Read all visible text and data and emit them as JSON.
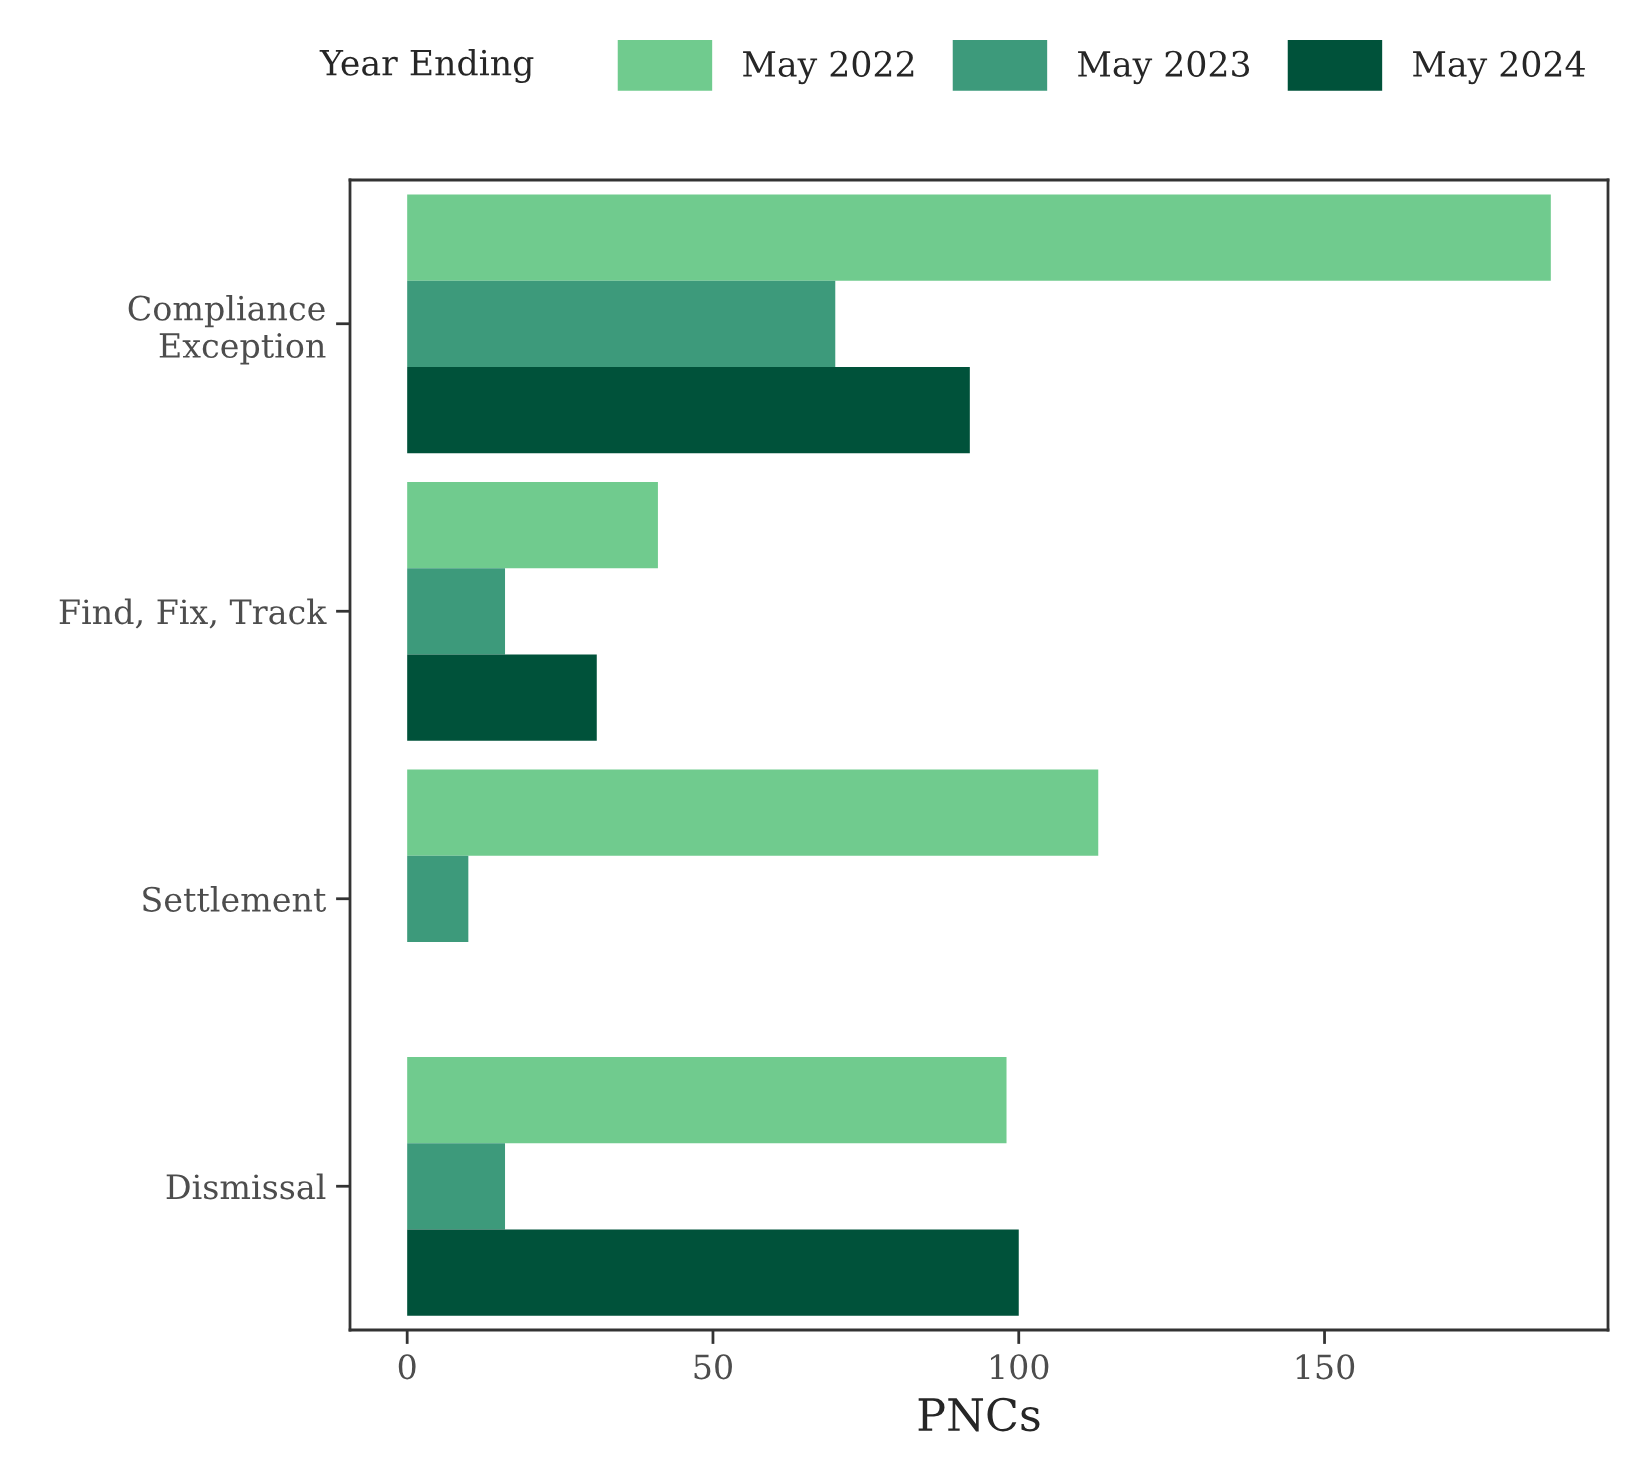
{
  "chart_data": {
    "type": "bar",
    "orientation": "horizontal",
    "xlabel": "PNCs",
    "legend_title": "Year Ending",
    "legend": "top",
    "categories": [
      "Compliance\nException",
      "Find, Fix, Track",
      "Settlement",
      "Dismissal"
    ],
    "series": [
      {
        "name": "May 2022",
        "color": "#70cb8e",
        "values": [
          187,
          41,
          113,
          98
        ]
      },
      {
        "name": "May 2023",
        "color": "#3d9a7b",
        "values": [
          70,
          16,
          10,
          16
        ]
      },
      {
        "name": "May 2024",
        "color": "#00523a",
        "values": [
          92,
          31,
          null,
          100
        ]
      }
    ],
    "xlim": [
      -9.35,
      196.35
    ],
    "xticks": [
      0,
      50,
      100,
      150
    ],
    "grid": false
  }
}
